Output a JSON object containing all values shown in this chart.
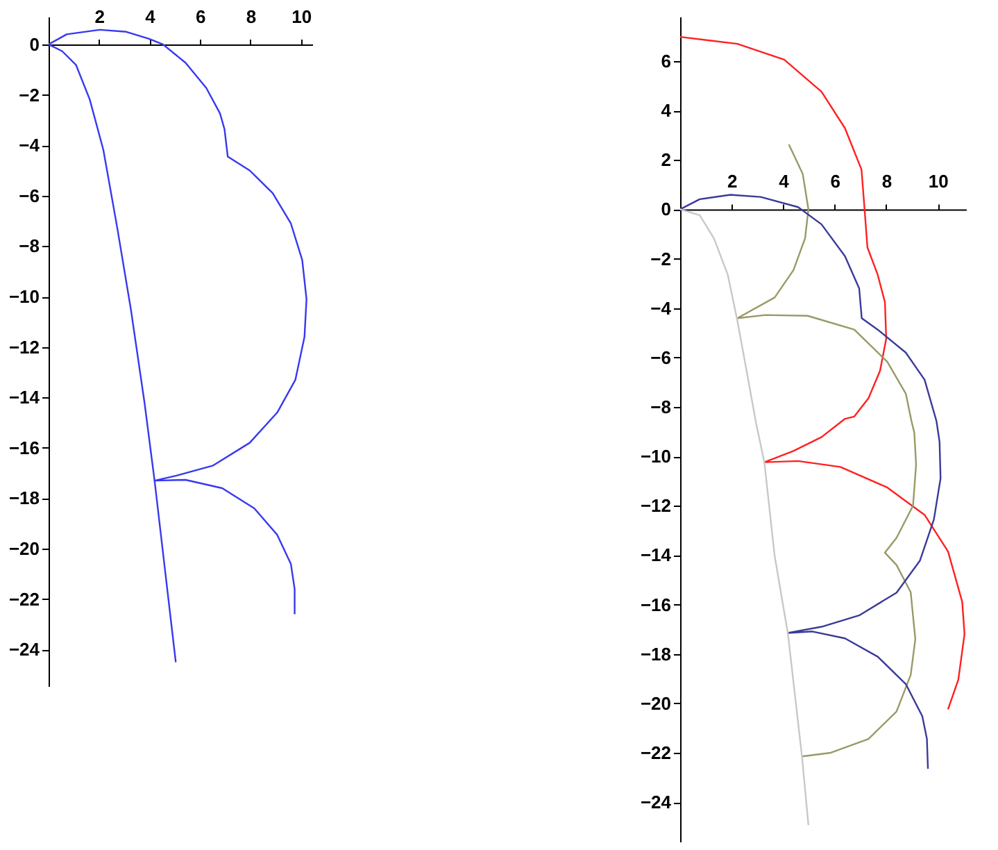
{
  "chart_data": [
    {
      "type": "line",
      "xlim": [
        0,
        10.45
      ],
      "ylim": [
        -25.45,
        1.1
      ],
      "xticks": [
        2,
        4,
        6,
        8,
        10
      ],
      "yticks": [
        0,
        -2,
        -4,
        -6,
        -8,
        -10,
        -12,
        -14,
        -16,
        -18,
        -20,
        -22,
        -24
      ],
      "grid": false,
      "legend": false,
      "series": [
        {
          "color": "#3838f0",
          "x": [
            0,
            0.72,
            2.03,
            3.08,
            3.98,
            4.53,
            5.43,
            6.25,
            6.79,
            6.97,
            7.1,
            7.97,
            8.88,
            9.6,
            10.05,
            10.22,
            10.14,
            9.78,
            9.06,
            7.97,
            6.52,
            5.07,
            4.2,
            5.43,
            6.88,
            8.15,
            9.06,
            9.6,
            9.75,
            9.75
          ],
          "values": [
            0,
            0.4,
            0.58,
            0.5,
            0.22,
            0,
            -0.73,
            -1.73,
            -2.73,
            -3.36,
            -4.45,
            -5,
            -5.9,
            -7.1,
            -8.55,
            -10.1,
            -11.6,
            -13.3,
            -14.6,
            -15.8,
            -16.7,
            -17.1,
            -17.3,
            -17.27,
            -17.6,
            -18.4,
            -19.45,
            -20.6,
            -21.6,
            -22.6
          ]
        },
        {
          "color": "#3838f0",
          "x": [
            0,
            0.54,
            1.09,
            1.63,
            2.17,
            2.72,
            3.26,
            3.8,
            4.2,
            4.62,
            5.04
          ],
          "values": [
            0,
            -0.27,
            -0.82,
            -2.18,
            -4.18,
            -7.27,
            -10.5,
            -14.2,
            -17.3,
            -20.9,
            -24.5
          ]
        }
      ]
    },
    {
      "type": "line",
      "xlim": [
        0,
        11.1
      ],
      "ylim": [
        -25.6,
        7.8
      ],
      "xticks": [
        2,
        4,
        6,
        8,
        10
      ],
      "yticks": [
        6,
        4,
        2,
        0,
        -2,
        -4,
        -6,
        -8,
        -10,
        -12,
        -14,
        -16,
        -18,
        -20,
        -22,
        -24
      ],
      "grid": false,
      "legend": false,
      "series": [
        {
          "color": "#ff2020",
          "x": [
            0,
            2.22,
            4.04,
            5.49,
            6.4,
            7.04,
            7.16,
            7.27,
            7.67,
            7.95,
            8.0,
            7.76,
            7.31,
            6.76,
            6.4,
            5.49,
            4.4,
            3.27,
            4.58,
            6.22,
            8.04,
            9.49,
            10.4,
            10.95,
            11.04,
            10.8,
            10.4
          ],
          "values": [
            6.98,
            6.7,
            6.06,
            4.76,
            3.28,
            1.61,
            0,
            -1.54,
            -2.65,
            -3.76,
            -5.24,
            -6.54,
            -7.65,
            -8.39,
            -8.48,
            -9.22,
            -9.78,
            -10.24,
            -10.19,
            -10.43,
            -11.26,
            -12.37,
            -13.85,
            -15.89,
            -17.19,
            -19.04,
            -20.24
          ]
        },
        {
          "color": "#999966",
          "x": [
            4.22,
            4.76,
            4.98,
            4.85,
            4.4,
            3.67,
            2.22,
            3.31,
            4.95,
            6.76,
            8.04,
            8.76,
            8.98,
            9.09,
            9.16,
            9.04,
            8.4,
            7.95,
            8.4,
            8.95,
            9.13,
            8.95,
            8.4,
            7.31,
            5.85,
            4.73
          ],
          "values": [
            2.63,
            1.43,
            0,
            -1.17,
            -2.46,
            -3.57,
            -4.41,
            -4.28,
            -4.31,
            -4.87,
            -6.17,
            -7.46,
            -8.57,
            -9.04,
            -10.33,
            -12,
            -13.3,
            -13.9,
            -14.4,
            -15.5,
            -17.4,
            -18.85,
            -20.33,
            -21.44,
            -22,
            -22.15
          ]
        },
        {
          "color": "#3a3a9a",
          "x": [
            0,
            0.76,
            1.95,
            3.13,
            4.58,
            5.49,
            6.4,
            6.95,
            7.05,
            7.67,
            8.76,
            9.49,
            9.95,
            10.07,
            10.11,
            9.85,
            9.31,
            8.4,
            6.95,
            5.49,
            4.18,
            5.13,
            6.4,
            7.67,
            8.76,
            9.4,
            9.58,
            9.62
          ],
          "values": [
            0,
            0.41,
            0.59,
            0.5,
            0.09,
            -0.61,
            -1.9,
            -3.2,
            -4.41,
            -4.87,
            -5.8,
            -6.9,
            -8.57,
            -9.41,
            -10.89,
            -12.56,
            -14.22,
            -15.52,
            -16.44,
            -16.9,
            -17.15,
            -17.09,
            -17.37,
            -18.11,
            -19.22,
            -20.52,
            -21.44,
            -22.65
          ]
        },
        {
          "color": "#c8c8c8",
          "x": [
            0,
            0.76,
            1.31,
            1.85,
            2.22,
            2.58,
            2.95,
            3.27,
            3.67,
            4.18,
            4.73,
            4.98
          ],
          "values": [
            0,
            -0.24,
            -1.17,
            -2.65,
            -4.5,
            -6.54,
            -8.67,
            -10.24,
            -14.04,
            -17.15,
            -22.15,
            -24.93
          ]
        }
      ]
    }
  ]
}
